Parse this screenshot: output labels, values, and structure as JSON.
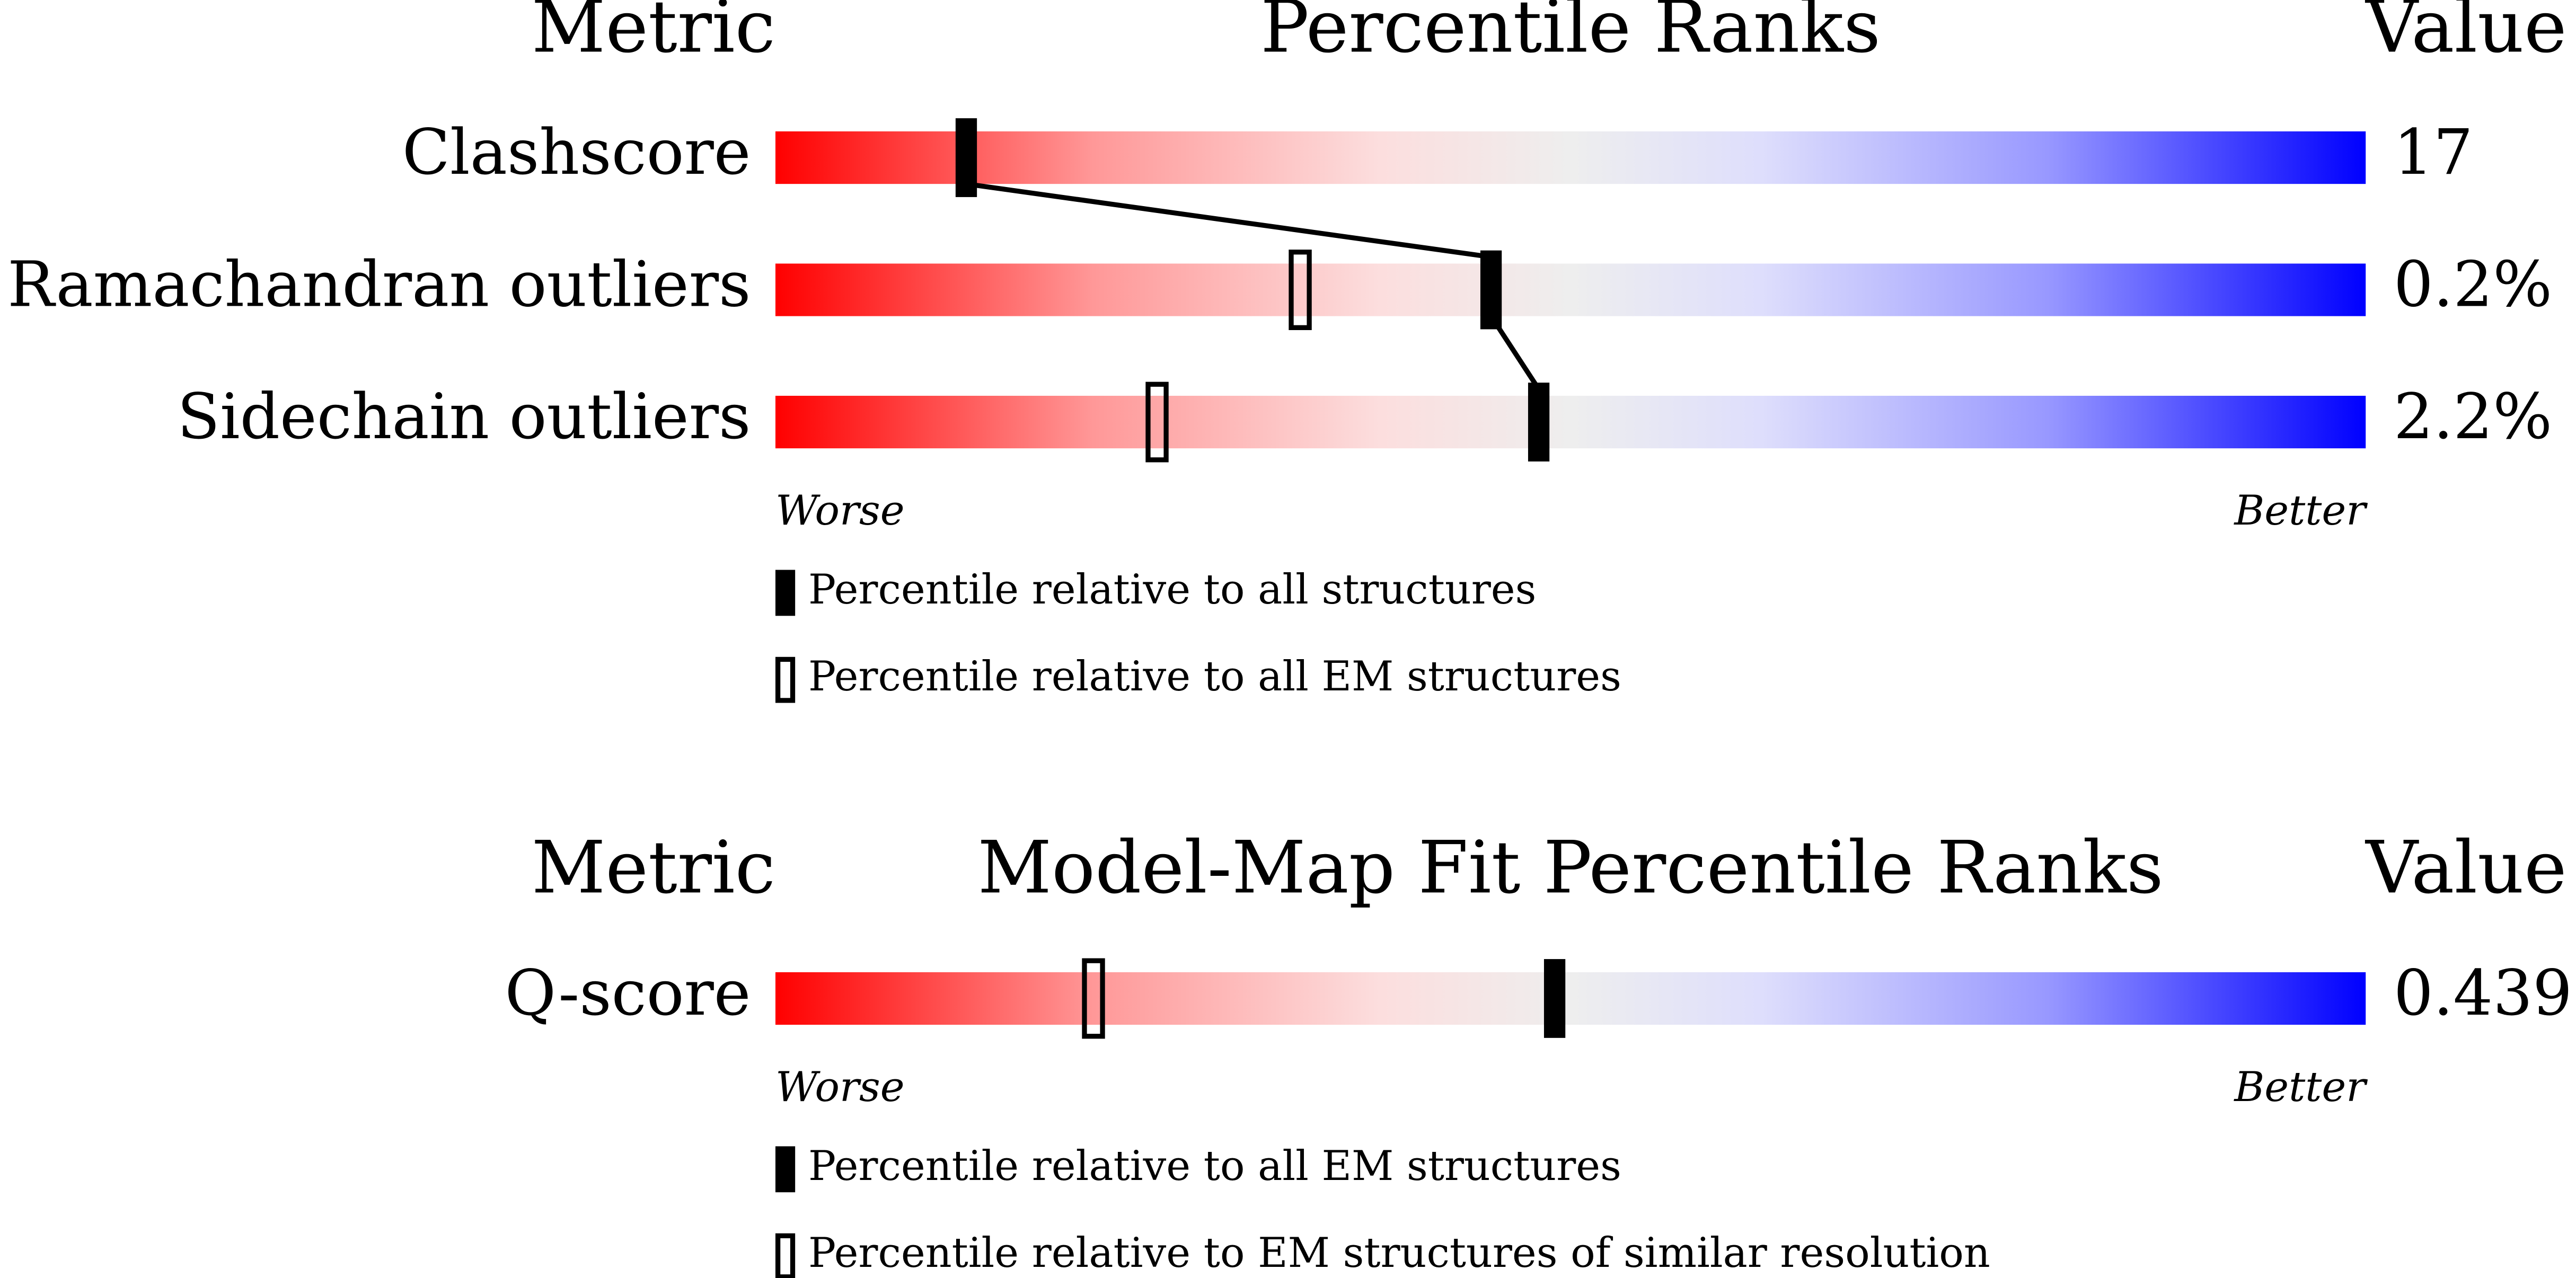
{
  "chart_data": [
    {
      "type": "percentile",
      "metric_header": "Metric",
      "title": "Percentile Ranks",
      "value_header": "Value",
      "xlim": [
        0,
        100
      ],
      "rows": [
        {
          "metric": "Clashscore",
          "value": 17,
          "percentile": 12
        },
        {
          "metric": "Ramachandran outliers",
          "value": 0.2,
          "value_label": "0.2%",
          "percentile": 45,
          "percentile_ref": 33
        },
        {
          "metric": "Sidechain outliers",
          "value": 2.2,
          "value_label": "2.2%",
          "percentile": 48,
          "percentile_ref": 24
        }
      ],
      "worse": "Worse",
      "better": "Better",
      "legend": [
        "Percentile relative to all structures",
        "Percentile relative to all EM structures"
      ]
    },
    {
      "type": "percentile",
      "metric_header": "Metric",
      "title": "Model-Map Fit Percentile Ranks",
      "value_header": "Value",
      "xlim": [
        0,
        100
      ],
      "rows": [
        {
          "metric": "Q-score",
          "value": 0.439,
          "percentile": 49,
          "percentile_ref": 20
        }
      ],
      "worse": "Worse",
      "better": "Better",
      "legend": [
        "Percentile relative to all EM structures",
        "Percentile relative to EM structures of similar resolution"
      ]
    }
  ]
}
